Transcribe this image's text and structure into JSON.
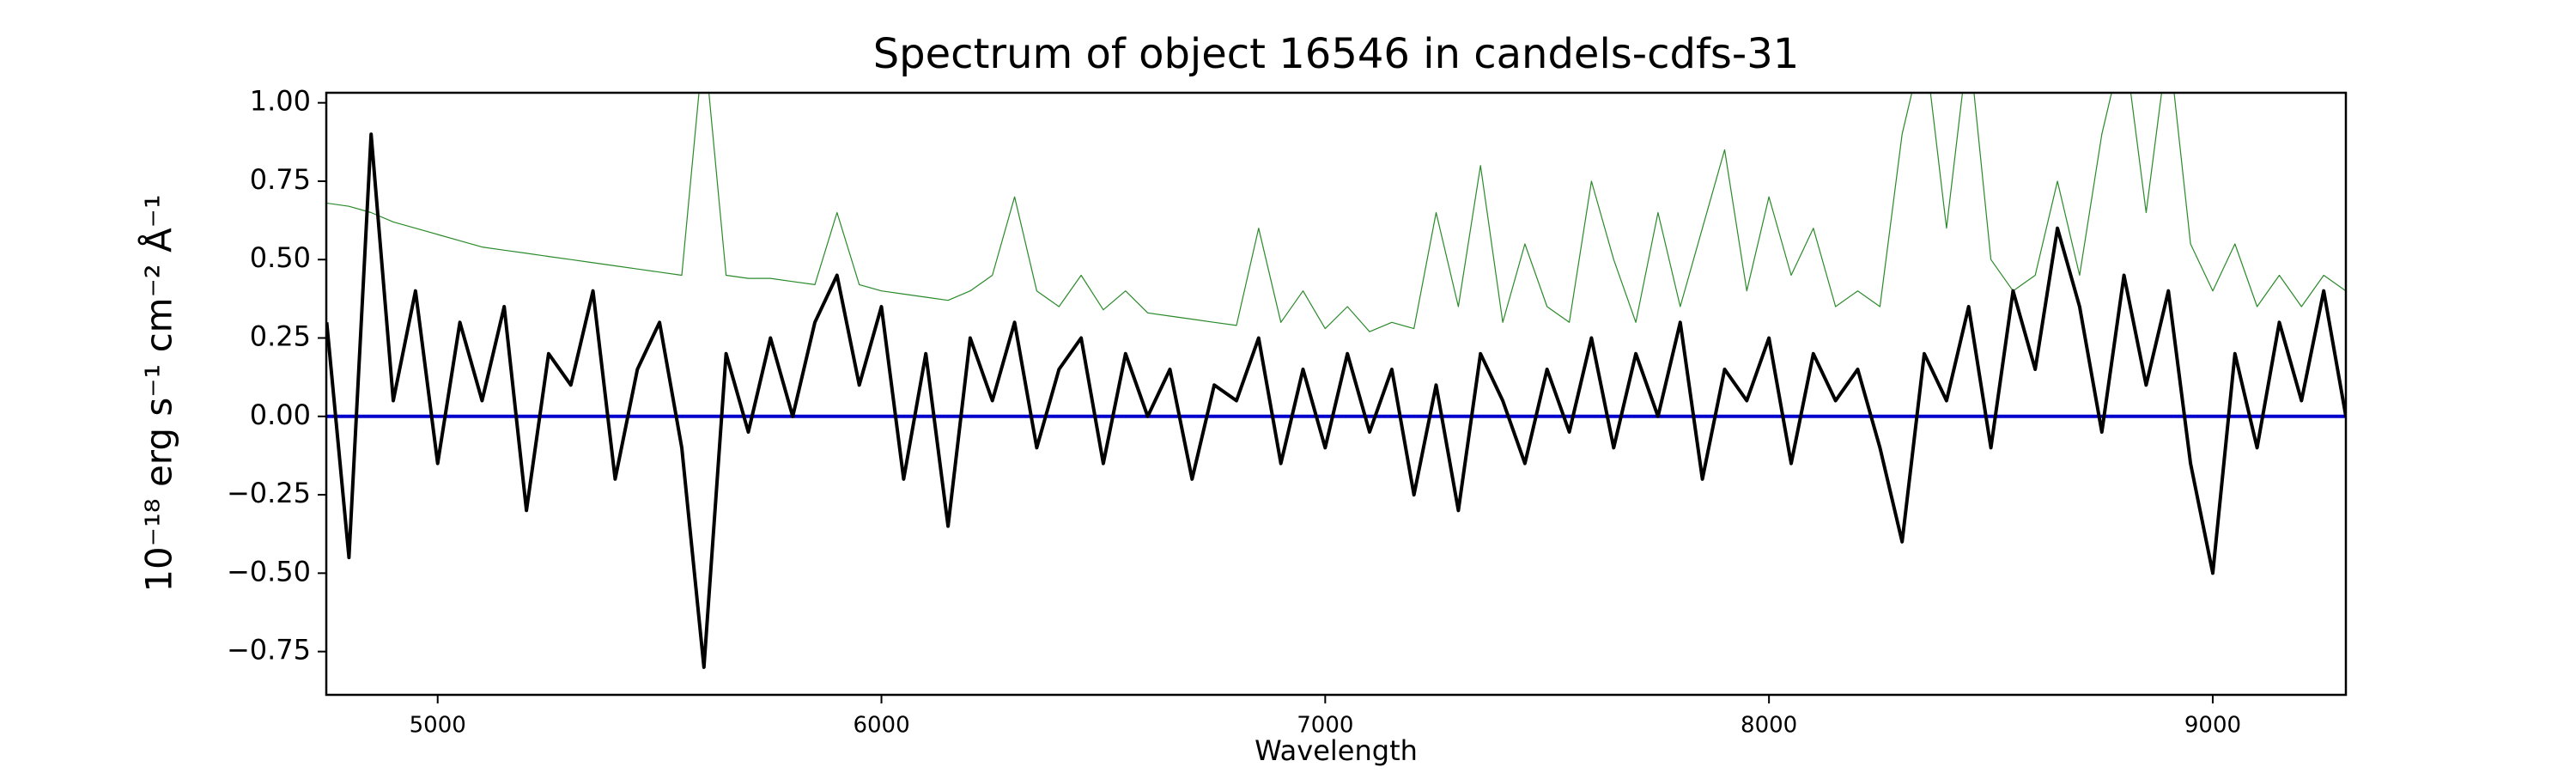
{
  "chart_data": {
    "type": "line",
    "title": "Spectrum of object 16546 in candels-cdfs-31",
    "xlabel": "Wavelength",
    "ylabel": "10⁻¹⁸ erg s⁻¹ cm⁻² Å⁻¹",
    "xlim": [
      4749,
      9300
    ],
    "ylim": [
      -0.888,
      1.032
    ],
    "xticks": [
      5000,
      6000,
      7000,
      8000,
      9000
    ],
    "yticks": [
      {
        "value": -0.75,
        "label": "−0.75"
      },
      {
        "value": -0.5,
        "label": "−0.50"
      },
      {
        "value": -0.25,
        "label": "−0.25"
      },
      {
        "value": 0,
        "label": "0.00"
      },
      {
        "value": 0.25,
        "label": "0.25"
      },
      {
        "value": 0.5,
        "label": "0.50"
      },
      {
        "value": 0.75,
        "label": "0.75"
      },
      {
        "value": 1,
        "label": "1.00"
      }
    ],
    "grid": false,
    "series": [
      {
        "color": "#2a8a2a",
        "width": 1.2,
        "x": [
          4750,
          4800,
          4850,
          4900,
          4950,
          5000,
          5050,
          5100,
          5150,
          5200,
          5250,
          5300,
          5350,
          5400,
          5450,
          5500,
          5550,
          5600,
          5650,
          5700,
          5750,
          5800,
          5850,
          5900,
          5950,
          6000,
          6050,
          6100,
          6150,
          6200,
          6250,
          6300,
          6350,
          6400,
          6450,
          6500,
          6550,
          6600,
          6650,
          6700,
          6750,
          6800,
          6850,
          6900,
          6950,
          7000,
          7050,
          7100,
          7150,
          7200,
          7250,
          7300,
          7350,
          7400,
          7450,
          7500,
          7550,
          7600,
          7650,
          7700,
          7750,
          7800,
          7850,
          7900,
          7950,
          8000,
          8050,
          8100,
          8150,
          8200,
          8250,
          8300,
          8350,
          8400,
          8450,
          8500,
          8550,
          8600,
          8650,
          8700,
          8750,
          8800,
          8850,
          8900,
          8950,
          9000,
          9050,
          9100,
          9150,
          9200,
          9250,
          9300
        ],
        "values": [
          0.68,
          0.67,
          0.65,
          0.62,
          0.6,
          0.58,
          0.56,
          0.54,
          0.53,
          0.52,
          0.51,
          0.5,
          0.49,
          0.48,
          0.47,
          0.46,
          0.45,
          1.2,
          0.45,
          0.44,
          0.44,
          0.43,
          0.42,
          0.65,
          0.42,
          0.4,
          0.39,
          0.38,
          0.37,
          0.4,
          0.45,
          0.7,
          0.4,
          0.35,
          0.45,
          0.34,
          0.4,
          0.33,
          0.32,
          0.31,
          0.3,
          0.29,
          0.6,
          0.3,
          0.4,
          0.28,
          0.35,
          0.27,
          0.3,
          0.28,
          0.65,
          0.35,
          0.8,
          0.3,
          0.55,
          0.35,
          0.3,
          0.75,
          0.5,
          0.3,
          0.65,
          0.35,
          0.6,
          0.85,
          0.4,
          0.7,
          0.45,
          0.6,
          0.35,
          0.4,
          0.35,
          0.9,
          1.2,
          0.6,
          1.2,
          0.5,
          0.4,
          0.45,
          0.75,
          0.45,
          0.9,
          1.2,
          0.65,
          1.2,
          0.55,
          0.4,
          0.55,
          0.35,
          0.45,
          0.35,
          0.45,
          0.4
        ]
      },
      {
        "color": "#0000cc",
        "width": 4,
        "x": [
          4750,
          9300
        ],
        "values": [
          0,
          0
        ]
      },
      {
        "color": "#000000",
        "width": 4,
        "x": [
          4750,
          4800,
          4850,
          4900,
          4950,
          5000,
          5050,
          5100,
          5150,
          5200,
          5250,
          5300,
          5350,
          5400,
          5450,
          5500,
          5550,
          5600,
          5650,
          5700,
          5750,
          5800,
          5850,
          5900,
          5950,
          6000,
          6050,
          6100,
          6150,
          6200,
          6250,
          6300,
          6350,
          6400,
          6450,
          6500,
          6550,
          6600,
          6650,
          6700,
          6750,
          6800,
          6850,
          6900,
          6950,
          7000,
          7050,
          7100,
          7150,
          7200,
          7250,
          7300,
          7350,
          7400,
          7450,
          7500,
          7550,
          7600,
          7650,
          7700,
          7750,
          7800,
          7850,
          7900,
          7950,
          8000,
          8050,
          8100,
          8150,
          8200,
          8250,
          8300,
          8350,
          8400,
          8450,
          8500,
          8550,
          8600,
          8650,
          8700,
          8750,
          8800,
          8850,
          8900,
          8950,
          9000,
          9050,
          9100,
          9150,
          9200,
          9250,
          9300
        ],
        "values": [
          0.3,
          -0.45,
          0.9,
          0.05,
          0.4,
          -0.15,
          0.3,
          0.05,
          0.35,
          -0.3,
          0.2,
          0.1,
          0.4,
          -0.2,
          0.15,
          0.3,
          -0.1,
          -0.8,
          0.2,
          -0.05,
          0.25,
          0,
          0.3,
          0.45,
          0.1,
          0.35,
          -0.2,
          0.2,
          -0.35,
          0.25,
          0.05,
          0.3,
          -0.1,
          0.15,
          0.25,
          -0.15,
          0.2,
          0,
          0.15,
          -0.2,
          0.1,
          0.05,
          0.25,
          -0.15,
          0.15,
          -0.1,
          0.2,
          -0.05,
          0.15,
          -0.25,
          0.1,
          -0.3,
          0.2,
          0.05,
          -0.15,
          0.15,
          -0.05,
          0.25,
          -0.1,
          0.2,
          0,
          0.3,
          -0.2,
          0.15,
          0.05,
          0.25,
          -0.15,
          0.2,
          0.05,
          0.15,
          -0.1,
          -0.4,
          0.2,
          0.05,
          0.35,
          -0.1,
          0.4,
          0.15,
          0.6,
          0.35,
          -0.05,
          0.45,
          0.1,
          0.4,
          -0.15,
          -0.5,
          0.2,
          -0.1,
          0.3,
          0.05,
          0.4,
          0
        ]
      }
    ]
  }
}
